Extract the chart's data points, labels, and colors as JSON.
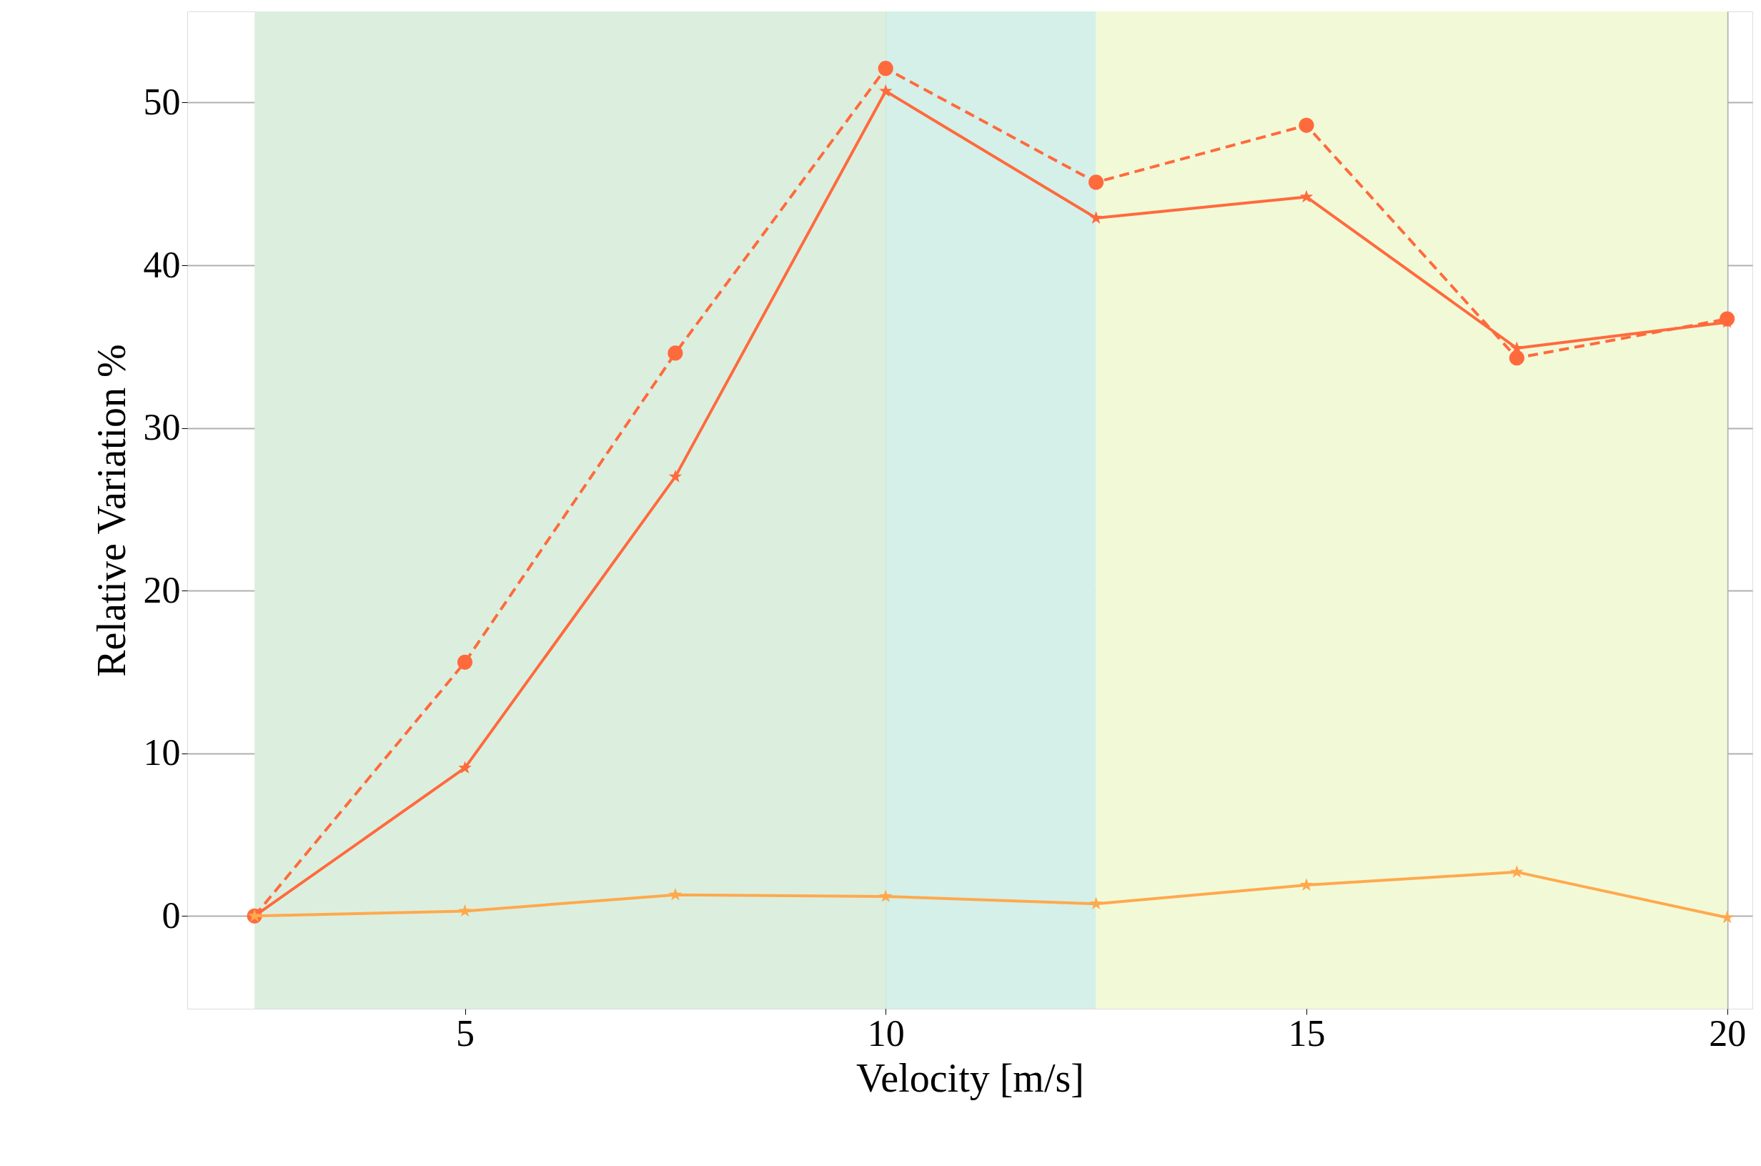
{
  "chart_data": {
    "type": "line",
    "xlabel": "Velocity [m/s]",
    "ylabel": "Relative Variation %",
    "x": [
      2.5,
      5,
      7.5,
      10,
      12.5,
      15,
      17.5,
      20
    ],
    "series": [
      {
        "color": "#ff6a3d",
        "marker": "circle",
        "line_style": "dashed",
        "values": [
          0,
          15.6,
          34.6,
          52.1,
          45.1,
          48.6,
          34.3,
          36.7
        ]
      },
      {
        "color": "#ff6a3d",
        "marker": "star",
        "line_style": "solid",
        "values": [
          0,
          9.1,
          27.0,
          50.7,
          42.9,
          44.2,
          34.9,
          36.5
        ]
      },
      {
        "color": "#ffa94d",
        "marker": "star",
        "line_style": "solid",
        "values": [
          0,
          0.3,
          1.3,
          1.2,
          0.75,
          1.9,
          2.7,
          -0.1
        ]
      }
    ],
    "bands": [
      {
        "axis": "x",
        "from": 2.5,
        "to": 10,
        "color": "#dcefde"
      },
      {
        "axis": "x",
        "from": 10,
        "to": 12.5,
        "color": "#d5f0e8"
      },
      {
        "axis": "x",
        "from": 12.5,
        "to": 20,
        "color": "#f2f9d7"
      }
    ],
    "xlim": [
      1.7,
      20.3
    ],
    "xticks": [
      5,
      10,
      15,
      20
    ],
    "ylim": [
      -5.7,
      55.6
    ],
    "yticks": [
      0,
      10,
      20,
      30,
      40,
      50
    ],
    "grid": true
  }
}
